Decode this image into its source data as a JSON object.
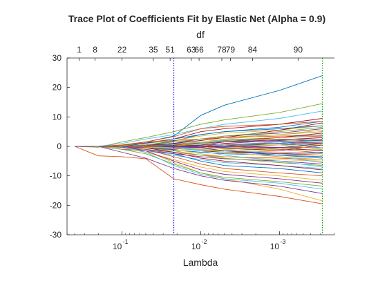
{
  "chart_data": {
    "type": "line",
    "title": "Trace Plot of Coefficients Fit by Elastic Net (Alpha = 0.9)",
    "xlabel": "Lambda",
    "top_axis_label": "df",
    "x_scale": "log",
    "x_direction": "reversed",
    "xlim": [
      0.5,
      0.0002
    ],
    "ylim": [
      -30,
      30
    ],
    "y_ticks": [
      "-30",
      "-20",
      "-10",
      "0",
      "10",
      "20",
      "30"
    ],
    "x_ticks": [
      {
        "label": "10^-1",
        "base": "10",
        "exp": "-1",
        "value": 0.1
      },
      {
        "label": "10^-2",
        "base": "10",
        "exp": "-2",
        "value": 0.01
      },
      {
        "label": "10^-3",
        "base": "10",
        "exp": "-3",
        "value": 0.001
      }
    ],
    "df_ticks": [
      {
        "label": "1",
        "lambda": 0.35
      },
      {
        "label": "8",
        "lambda": 0.22
      },
      {
        "label": "22",
        "lambda": 0.1
      },
      {
        "label": "35",
        "lambda": 0.04
      },
      {
        "label": "51",
        "lambda": 0.0245
      },
      {
        "label": "63",
        "lambda": 0.0132
      },
      {
        "label": "66",
        "lambda": 0.0105
      },
      {
        "label": "78",
        "lambda": 0.0054
      },
      {
        "label": "79",
        "lambda": 0.0042
      },
      {
        "label": "84",
        "lambda": 0.0022
      },
      {
        "label": "90",
        "lambda": 0.00058
      }
    ],
    "vlines": [
      {
        "lambda": 0.022,
        "color": "#0000ff",
        "style": "dotted"
      },
      {
        "lambda": 0.000285,
        "color": "#00aa00",
        "style": "dotted"
      }
    ],
    "series_colors": [
      "#0072bd",
      "#d95319",
      "#edb120",
      "#7e2f8e",
      "#77ac30",
      "#4dbeee",
      "#a2142f"
    ],
    "lambda_grid": [
      0.4,
      0.2,
      0.1,
      0.05,
      0.022,
      0.01,
      0.005,
      0.001,
      0.000285
    ],
    "series": [
      {
        "values": [
          0,
          0,
          0.4,
          1.5,
          3.5,
          10.5,
          14,
          19,
          24
        ]
      },
      {
        "values": [
          0,
          -3.2,
          -3.5,
          -4.2,
          -11,
          -13,
          -14.5,
          -17,
          -19.5
        ]
      },
      {
        "values": [
          0,
          0,
          -0.5,
          -1.5,
          -5.5,
          -9,
          -11,
          -14.5,
          -18.5
        ]
      },
      {
        "values": [
          0,
          0,
          -2,
          -4,
          -7.5,
          -10,
          -11.5,
          -13.5,
          -16
        ]
      },
      {
        "values": [
          0,
          -0.3,
          1.5,
          3,
          5,
          7.5,
          9,
          11.5,
          14.5
        ]
      },
      {
        "values": [
          0,
          0,
          1,
          2.5,
          4,
          6,
          7.5,
          9.5,
          12
        ]
      },
      {
        "values": [
          0,
          0,
          0.3,
          1.2,
          2.5,
          5,
          6,
          7.5,
          9.5
        ]
      },
      {
        "values": [
          0,
          0,
          0,
          0.5,
          1.8,
          4,
          5,
          6.5,
          8.5
        ]
      },
      {
        "values": [
          0,
          0,
          0.5,
          1.5,
          3.3,
          6,
          6.8,
          7.5,
          8.5
        ]
      },
      {
        "values": [
          0,
          0,
          0.2,
          1,
          2,
          3.5,
          4.5,
          5.5,
          7
        ]
      },
      {
        "values": [
          0,
          0,
          0,
          0.2,
          1,
          2.5,
          3.5,
          4.5,
          6
        ]
      },
      {
        "values": [
          0,
          0,
          0,
          0.5,
          1.5,
          2.5,
          3,
          4,
          5
        ]
      },
      {
        "values": [
          0,
          0,
          0,
          0.2,
          0.8,
          1.5,
          2.2,
          3,
          4
        ]
      },
      {
        "values": [
          0,
          0,
          0,
          0,
          0.5,
          1,
          1.6,
          2.2,
          3
        ]
      },
      {
        "values": [
          0,
          0,
          0,
          0.3,
          0.8,
          1.2,
          1.5,
          1.8,
          2
        ]
      },
      {
        "values": [
          0,
          0,
          0,
          0,
          0.3,
          0.5,
          0.8,
          1,
          1.2
        ]
      },
      {
        "values": [
          0,
          0,
          0,
          0,
          0,
          0.2,
          0.4,
          0.5,
          0.5
        ]
      },
      {
        "values": [
          0,
          0,
          0,
          0,
          0,
          0,
          -0.2,
          -0.3,
          -0.5
        ]
      },
      {
        "values": [
          0,
          0,
          0,
          0,
          -0.3,
          -0.5,
          -0.8,
          -1,
          -1.2
        ]
      },
      {
        "values": [
          0,
          0,
          0,
          -0.3,
          -0.8,
          -1.2,
          -1.6,
          -2,
          -2.5
        ]
      },
      {
        "values": [
          0,
          0,
          0,
          0,
          -0.5,
          -1.5,
          -2,
          -2.5,
          -3
        ]
      },
      {
        "values": [
          0,
          0,
          0,
          -0.5,
          -1.2,
          -2,
          -2.5,
          -3,
          -3.5
        ]
      },
      {
        "values": [
          0,
          0,
          -0.5,
          -1,
          -2,
          -3,
          -3.5,
          -4,
          -4.5
        ]
      },
      {
        "values": [
          0,
          0,
          0,
          -0.3,
          -1,
          -2.5,
          -3.5,
          -4.5,
          -5
        ]
      },
      {
        "values": [
          0,
          0,
          -1,
          -1.5,
          -2.5,
          -3.5,
          -4.2,
          -5,
          -6
        ]
      },
      {
        "values": [
          0,
          0,
          0,
          -0.5,
          -1.5,
          -3,
          -4,
          -5.5,
          -6.5
        ]
      },
      {
        "values": [
          0,
          0,
          -0.5,
          -1.5,
          -3,
          -4.5,
          -5.5,
          -6.5,
          -7.5
        ]
      },
      {
        "values": [
          0,
          0,
          0,
          -0.5,
          -2,
          -4,
          -5,
          -6.5,
          -8
        ]
      },
      {
        "values": [
          0,
          0,
          -0.3,
          -1,
          -2.5,
          -5,
          -6.5,
          -7.5,
          -9
        ]
      },
      {
        "values": [
          0,
          0,
          0,
          -1,
          -3.5,
          -6,
          -7.5,
          -9,
          -10
        ]
      },
      {
        "values": [
          0,
          0,
          -0.5,
          -2,
          -4.5,
          -7,
          -8.5,
          -10,
          -11.5
        ]
      },
      {
        "values": [
          0,
          0,
          0,
          -1.5,
          -5,
          -8,
          -9.5,
          -11,
          -12.5
        ]
      },
      {
        "values": [
          0,
          0,
          -1,
          -2.5,
          -6,
          -9,
          -10.5,
          -12,
          -13.5
        ]
      },
      {
        "values": [
          0,
          0,
          0,
          -2,
          -6.5,
          -9.5,
          -11,
          -12.5,
          -14.5
        ]
      },
      {
        "values": [
          0,
          0,
          0,
          0.5,
          1,
          2,
          3,
          5.5,
          8
        ]
      },
      {
        "values": [
          0,
          0,
          0,
          1,
          2.5,
          4,
          5,
          6,
          7
        ]
      },
      {
        "values": [
          0,
          0,
          0.5,
          1.5,
          2,
          2.5,
          3,
          3.5,
          3.8
        ]
      },
      {
        "values": [
          0,
          0,
          0,
          0,
          0.5,
          1.5,
          2.5,
          4,
          5.5
        ]
      },
      {
        "values": [
          0,
          0,
          0,
          -0.5,
          -1,
          0,
          1,
          2,
          3
        ]
      },
      {
        "values": [
          0,
          0,
          0,
          0,
          -0.5,
          -1,
          -1.5,
          -0.5,
          0.5
        ]
      },
      {
        "values": [
          0,
          0,
          0,
          0,
          0,
          -1,
          -2,
          -3.5,
          -5.5
        ]
      },
      {
        "values": [
          0,
          0,
          0,
          0,
          0,
          0.5,
          1.5,
          3,
          4.5
        ]
      },
      {
        "values": [
          0,
          0,
          0,
          0,
          0.3,
          -0.5,
          -1.5,
          -3,
          -4
        ]
      },
      {
        "values": [
          0,
          0,
          0,
          0,
          0,
          -0.5,
          0.5,
          1.5,
          2.5
        ]
      },
      {
        "values": [
          0,
          0,
          0,
          0,
          0,
          0,
          -1,
          -2,
          -3
        ]
      },
      {
        "values": [
          0,
          0,
          0,
          0,
          -0.2,
          -0.3,
          0.5,
          1,
          1.5
        ]
      },
      {
        "values": [
          0,
          0,
          0,
          0.5,
          1.5,
          2.5,
          3.5,
          5,
          6.5
        ]
      },
      {
        "values": [
          0,
          0,
          0,
          0,
          -0.5,
          -1.5,
          -3,
          -5,
          -7
        ]
      },
      {
        "values": [
          0,
          0,
          0,
          0,
          0,
          0,
          0.5,
          -0.5,
          -1.5
        ]
      },
      {
        "values": [
          0,
          0,
          0,
          0,
          0,
          0.3,
          -0.3,
          0.5,
          1
        ]
      },
      {
        "values": [
          0,
          0,
          0,
          0.2,
          0.5,
          1,
          2,
          3,
          3.5
        ]
      },
      {
        "values": [
          0,
          0,
          0,
          -0.2,
          -0.6,
          -1,
          -2,
          -3.5,
          -4.5
        ]
      },
      {
        "values": [
          0,
          0,
          0,
          0,
          0,
          -0.5,
          -1.5,
          -2.5,
          -2
        ]
      },
      {
        "values": [
          0,
          0,
          0,
          0,
          0,
          1,
          2,
          2.5,
          2
        ]
      },
      {
        "values": [
          0,
          0,
          0,
          0,
          0,
          0,
          0.5,
          1.5,
          -0.5
        ]
      },
      {
        "values": [
          0,
          0,
          0,
          0,
          0,
          0,
          -0.5,
          -1.5,
          0.5
        ]
      },
      {
        "values": [
          0,
          0,
          0,
          0,
          0,
          0,
          0,
          1,
          2.2
        ]
      },
      {
        "values": [
          0,
          0,
          0,
          0,
          0,
          0,
          0,
          -1,
          -2.2
        ]
      },
      {
        "values": [
          0,
          0,
          0,
          0,
          0,
          0,
          0,
          0.5,
          -1
        ]
      },
      {
        "values": [
          0,
          0,
          0,
          0,
          0,
          0,
          0,
          -0.5,
          1
        ]
      }
    ]
  }
}
